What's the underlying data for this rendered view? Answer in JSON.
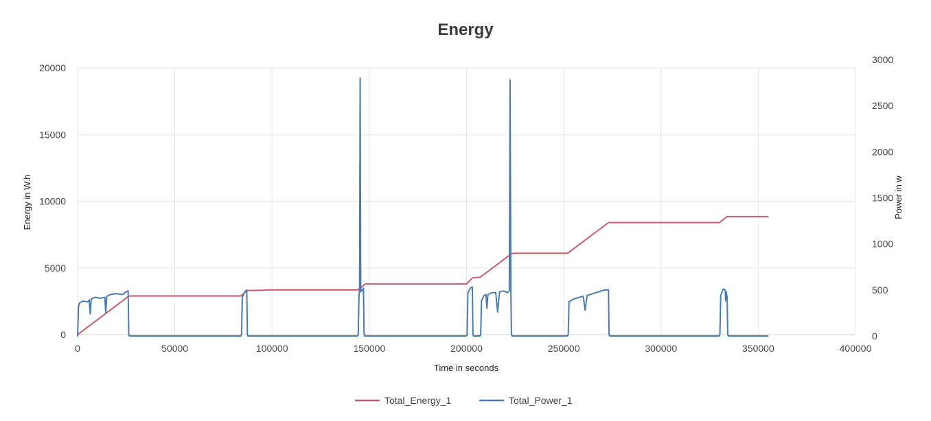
{
  "chart_data": {
    "type": "line",
    "title": "Energy",
    "xlabel": "Time in seconds",
    "ylabel": "Energy in W.h",
    "y2label": "Power in w",
    "xlim": [
      0,
      400000
    ],
    "ylim": [
      0,
      20000
    ],
    "y2lim": [
      0,
      3000
    ],
    "grid": true,
    "legend_position": "bottom",
    "x_ticks": [
      "0",
      "50000",
      "100000",
      "150000",
      "200000",
      "250000",
      "300000",
      "350000",
      "400000"
    ],
    "y_ticks": [
      "0",
      "5000",
      "10000",
      "15000",
      "20000"
    ],
    "y2_ticks": [
      "0",
      "500",
      "1000",
      "1500",
      "2000",
      "2500",
      "3000"
    ],
    "series": [
      {
        "name": "Total_Energy_1",
        "axis": "left",
        "color": "#c75b6b",
        "x": [
          0,
          26000,
          27000,
          84000,
          87000,
          100000,
          144000,
          148000,
          200000,
          203000,
          207000,
          223000,
          224000,
          252000,
          273000,
          330000,
          334000,
          355000
        ],
        "y": [
          0,
          2850,
          2900,
          2900,
          3300,
          3350,
          3350,
          3800,
          3800,
          4250,
          4300,
          6050,
          6100,
          6100,
          8400,
          8400,
          8850,
          8850
        ]
      },
      {
        "name": "Total_Power_1",
        "axis": "right",
        "color": "#4a7ab0",
        "x": [
          0,
          500,
          1000,
          3000,
          5000,
          6000,
          6500,
          7000,
          9000,
          12000,
          14000,
          14500,
          15000,
          17000,
          20000,
          23000,
          25000,
          26000,
          26300,
          26600,
          84000,
          84300,
          84700,
          86000,
          87000,
          87300,
          87600,
          144000,
          144300,
          144700,
          145000,
          145300,
          145600,
          146000,
          147000,
          147300,
          147600,
          200000,
          200300,
          200700,
          202000,
          203000,
          203300,
          203600,
          207000,
          207300,
          207700,
          209000,
          210000,
          210500,
          211000,
          213000,
          215000,
          216000,
          217000,
          219000,
          221000,
          222000,
          222400,
          222800,
          223100,
          223400,
          252000,
          252300,
          252700,
          255000,
          258000,
          260000,
          261000,
          262000,
          265000,
          268000,
          271000,
          273000,
          273300,
          273600,
          330000,
          330300,
          330700,
          332000,
          333000,
          333200,
          333500,
          334000,
          334300,
          334600,
          355000
        ],
        "y": [
          0,
          320,
          360,
          380,
          370,
          390,
          240,
          400,
          420,
          410,
          420,
          250,
          430,
          450,
          460,
          450,
          480,
          490,
          20,
          0,
          0,
          20,
          420,
          480,
          500,
          20,
          0,
          0,
          20,
          430,
          500,
          2800,
          480,
          490,
          520,
          20,
          0,
          0,
          20,
          470,
          520,
          530,
          20,
          0,
          0,
          20,
          380,
          440,
          450,
          300,
          450,
          470,
          470,
          260,
          480,
          490,
          470,
          490,
          2780,
          480,
          20,
          0,
          0,
          20,
          370,
          400,
          420,
          430,
          280,
          440,
          460,
          480,
          500,
          500,
          20,
          0,
          0,
          20,
          440,
          510,
          500,
          380,
          480,
          420,
          20,
          0,
          0
        ]
      }
    ]
  }
}
